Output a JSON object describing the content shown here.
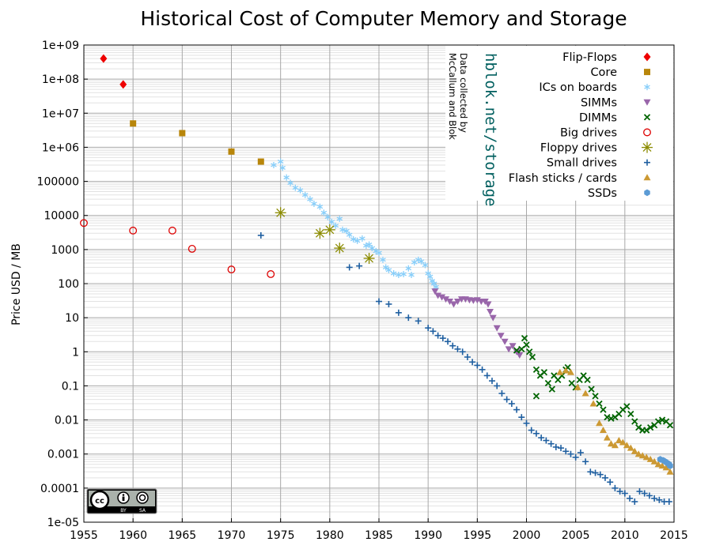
{
  "chart_data": {
    "type": "scatter",
    "title": "Historical Cost of Computer Memory and Storage",
    "xlabel": "",
    "ylabel": "Price USD / MB",
    "xlim": [
      1955,
      2015
    ],
    "ylim": [
      1e-05,
      1000000000.0
    ],
    "yscale": "log",
    "grid": true,
    "x_ticks": [
      1955,
      1960,
      1965,
      1970,
      1975,
      1980,
      1985,
      1990,
      1995,
      2000,
      2005,
      2010,
      2015
    ],
    "y_ticks": [
      {
        "v": 1e-05,
        "label": "1e-05"
      },
      {
        "v": 0.0001,
        "label": "0.0001"
      },
      {
        "v": 0.001,
        "label": "0.001"
      },
      {
        "v": 0.01,
        "label": "0.01"
      },
      {
        "v": 0.1,
        "label": "0.1"
      },
      {
        "v": 1,
        "label": "1"
      },
      {
        "v": 10,
        "label": "10"
      },
      {
        "v": 100,
        "label": "100"
      },
      {
        "v": 1000,
        "label": "1000"
      },
      {
        "v": 10000,
        "label": "10000"
      },
      {
        "v": 100000,
        "label": "100000"
      },
      {
        "v": 1000000,
        "label": "1e+06"
      },
      {
        "v": 10000000,
        "label": "1e+07"
      },
      {
        "v": 100000000,
        "label": "1e+08"
      },
      {
        "v": 1000000000,
        "label": "1e+09"
      }
    ],
    "legend_position": "top-right",
    "series": [
      {
        "name": "Flip-Flops",
        "marker": "diamond",
        "color": "#ee0000",
        "points": [
          [
            1957,
            400000000
          ],
          [
            1959,
            70000000
          ]
        ]
      },
      {
        "name": "Core",
        "marker": "square",
        "color": "#b8860b",
        "points": [
          [
            1960,
            5000000
          ],
          [
            1965,
            2600000
          ],
          [
            1970,
            750000
          ],
          [
            1973,
            380000
          ]
        ]
      },
      {
        "name": "ICs on boards",
        "marker": "asterisk",
        "color": "#87cefa",
        "points": [
          [
            1974.3,
            300000
          ],
          [
            1975,
            380000
          ],
          [
            1975.2,
            250000
          ],
          [
            1975.6,
            130000
          ],
          [
            1976,
            90000
          ],
          [
            1976.5,
            65000
          ],
          [
            1977,
            55000
          ],
          [
            1977.5,
            40000
          ],
          [
            1978,
            30000
          ],
          [
            1978.4,
            22000
          ],
          [
            1979,
            18000
          ],
          [
            1979.4,
            12000
          ],
          [
            1979.8,
            9000
          ],
          [
            1980.2,
            6500
          ],
          [
            1980.6,
            5000
          ],
          [
            1981,
            8000
          ],
          [
            1981.3,
            3800
          ],
          [
            1981.7,
            3500
          ],
          [
            1982,
            2700
          ],
          [
            1982.4,
            2000
          ],
          [
            1982.8,
            1800
          ],
          [
            1983.3,
            2100
          ],
          [
            1983.7,
            1300
          ],
          [
            1984,
            1400
          ],
          [
            1984.3,
            1100
          ],
          [
            1984.7,
            900
          ],
          [
            1985,
            800
          ],
          [
            1985.4,
            500
          ],
          [
            1985.7,
            300
          ],
          [
            1986,
            250
          ],
          [
            1986.5,
            200
          ],
          [
            1987,
            180
          ],
          [
            1987.5,
            190
          ],
          [
            1988,
            280
          ],
          [
            1988.3,
            180
          ],
          [
            1988.6,
            420
          ],
          [
            1989,
            500
          ],
          [
            1989.3,
            450
          ],
          [
            1989.7,
            350
          ],
          [
            1990,
            200
          ],
          [
            1990.2,
            160
          ],
          [
            1990.4,
            120
          ],
          [
            1990.6,
            100
          ],
          [
            1990.8,
            80
          ]
        ]
      },
      {
        "name": "SIMMs",
        "marker": "triangle-down",
        "color": "#9966aa",
        "points": [
          [
            1990.7,
            60
          ],
          [
            1991,
            45
          ],
          [
            1991.4,
            40
          ],
          [
            1991.8,
            35
          ],
          [
            1992.2,
            30
          ],
          [
            1992.6,
            25
          ],
          [
            1993,
            30
          ],
          [
            1993.4,
            35
          ],
          [
            1993.8,
            35
          ],
          [
            1994.2,
            33
          ],
          [
            1994.6,
            32
          ],
          [
            1995,
            33
          ],
          [
            1995.4,
            30
          ],
          [
            1995.8,
            30
          ],
          [
            1996.1,
            25
          ],
          [
            1996.3,
            15
          ],
          [
            1996.6,
            10
          ],
          [
            1997,
            5
          ],
          [
            1997.4,
            3
          ],
          [
            1997.8,
            2
          ],
          [
            1998.2,
            1.2
          ],
          [
            1998.6,
            1.5
          ],
          [
            1999,
            1
          ],
          [
            1999.3,
            0.8
          ]
        ]
      },
      {
        "name": "DIMMs",
        "marker": "x",
        "color": "#006400",
        "points": [
          [
            1999,
            1.1
          ],
          [
            1999.5,
            1.2
          ],
          [
            1999.8,
            2.5
          ],
          [
            2000,
            1.6
          ],
          [
            2000.3,
            1.0
          ],
          [
            2000.6,
            0.7
          ],
          [
            2001,
            0.3
          ],
          [
            2001,
            0.05
          ],
          [
            2001.4,
            0.2
          ],
          [
            2001.8,
            0.25
          ],
          [
            2002.2,
            0.12
          ],
          [
            2002.6,
            0.08
          ],
          [
            2002.8,
            0.2
          ],
          [
            2003.2,
            0.15
          ],
          [
            2003.6,
            0.2
          ],
          [
            2004,
            0.3
          ],
          [
            2004.2,
            0.35
          ],
          [
            2004.6,
            0.12
          ],
          [
            2005,
            0.09
          ],
          [
            2005.4,
            0.15
          ],
          [
            2005.8,
            0.2
          ],
          [
            2006.2,
            0.15
          ],
          [
            2006.6,
            0.08
          ],
          [
            2007,
            0.05
          ],
          [
            2007.4,
            0.03
          ],
          [
            2007.8,
            0.02
          ],
          [
            2008.2,
            0.012
          ],
          [
            2008.6,
            0.011
          ],
          [
            2009,
            0.012
          ],
          [
            2009.4,
            0.015
          ],
          [
            2009.8,
            0.02
          ],
          [
            2010.2,
            0.025
          ],
          [
            2010.6,
            0.015
          ],
          [
            2011,
            0.009
          ],
          [
            2011.4,
            0.006
          ],
          [
            2011.8,
            0.005
          ],
          [
            2012.2,
            0.005
          ],
          [
            2012.6,
            0.006
          ],
          [
            2013,
            0.007
          ],
          [
            2013.4,
            0.009
          ],
          [
            2013.8,
            0.01
          ],
          [
            2014.2,
            0.009
          ],
          [
            2014.6,
            0.007
          ]
        ]
      },
      {
        "name": "Big drives",
        "marker": "circle-open",
        "color": "#dd0000",
        "points": [
          [
            1955,
            6000
          ],
          [
            1960,
            3600
          ],
          [
            1964,
            3600
          ],
          [
            1966,
            1050
          ],
          [
            1970,
            260
          ],
          [
            1974,
            190
          ]
        ]
      },
      {
        "name": "Floppy drives",
        "marker": "star",
        "color": "#8b8b00",
        "points": [
          [
            1975,
            12000
          ],
          [
            1979,
            3000
          ],
          [
            1980,
            3800
          ],
          [
            1981,
            1100
          ],
          [
            1984,
            550
          ]
        ]
      },
      {
        "name": "Small drives",
        "marker": "plus",
        "color": "#1f5fa0",
        "points": [
          [
            1973,
            2600
          ],
          [
            1982,
            300
          ],
          [
            1983,
            330
          ],
          [
            1985,
            30
          ],
          [
            1986,
            25
          ],
          [
            1987,
            14
          ],
          [
            1988,
            10
          ],
          [
            1989,
            8
          ],
          [
            1990,
            5
          ],
          [
            1990.5,
            4
          ],
          [
            1991,
            3
          ],
          [
            1991.5,
            2.5
          ],
          [
            1992,
            2
          ],
          [
            1992.5,
            1.5
          ],
          [
            1993,
            1.2
          ],
          [
            1993.5,
            1
          ],
          [
            1994,
            0.7
          ],
          [
            1994.5,
            0.5
          ],
          [
            1995,
            0.4
          ],
          [
            1995.5,
            0.3
          ],
          [
            1996,
            0.2
          ],
          [
            1996.5,
            0.14
          ],
          [
            1997,
            0.1
          ],
          [
            1997.5,
            0.06
          ],
          [
            1998,
            0.04
          ],
          [
            1998.5,
            0.03
          ],
          [
            1999,
            0.02
          ],
          [
            1999.5,
            0.012
          ],
          [
            2000,
            0.008
          ],
          [
            2000.5,
            0.005
          ],
          [
            2001,
            0.004
          ],
          [
            2001.5,
            0.003
          ],
          [
            2002,
            0.0025
          ],
          [
            2002.5,
            0.002
          ],
          [
            2003,
            0.0016
          ],
          [
            2003.5,
            0.0015
          ],
          [
            2004,
            0.0012
          ],
          [
            2004.5,
            0.001
          ],
          [
            2005,
            0.0008
          ],
          [
            2005.5,
            0.0011
          ],
          [
            2006,
            0.0006
          ],
          [
            2006.5,
            0.0003
          ],
          [
            2007,
            0.00028
          ],
          [
            2007.5,
            0.00025
          ],
          [
            2008,
            0.0002
          ],
          [
            2008.5,
            0.00015
          ],
          [
            2009,
            0.0001
          ],
          [
            2009.5,
            8e-05
          ],
          [
            2010,
            7e-05
          ],
          [
            2010.5,
            5e-05
          ],
          [
            2011,
            4e-05
          ],
          [
            2011.5,
            8e-05
          ],
          [
            2012,
            7e-05
          ],
          [
            2012.5,
            6e-05
          ],
          [
            2013,
            5e-05
          ],
          [
            2013.5,
            4.5e-05
          ],
          [
            2014,
            4e-05
          ],
          [
            2014.5,
            4e-05
          ]
        ]
      },
      {
        "name": "Flash sticks / cards",
        "marker": "triangle-up",
        "color": "#cc9933",
        "points": [
          [
            2003.4,
            0.25
          ],
          [
            2004,
            0.28
          ],
          [
            2004.5,
            0.25
          ],
          [
            2005.2,
            0.09
          ],
          [
            2006,
            0.06
          ],
          [
            2006.8,
            0.03
          ],
          [
            2007.4,
            0.008
          ],
          [
            2007.8,
            0.005
          ],
          [
            2008.2,
            0.003
          ],
          [
            2008.6,
            0.002
          ],
          [
            2009,
            0.0018
          ],
          [
            2009.4,
            0.0025
          ],
          [
            2009.8,
            0.0022
          ],
          [
            2010.2,
            0.0018
          ],
          [
            2010.6,
            0.0015
          ],
          [
            2011,
            0.0012
          ],
          [
            2011.4,
            0.001
          ],
          [
            2011.8,
            0.0009
          ],
          [
            2012.2,
            0.0008
          ],
          [
            2012.6,
            0.0007
          ],
          [
            2013,
            0.0006
          ],
          [
            2013.4,
            0.0005
          ],
          [
            2013.8,
            0.00045
          ],
          [
            2014.2,
            0.0004
          ],
          [
            2014.6,
            0.0003
          ]
        ]
      },
      {
        "name": "SSDs",
        "marker": "hexagon",
        "color": "#5b9bd5",
        "points": [
          [
            2013.6,
            0.0007
          ],
          [
            2013.9,
            0.00065
          ],
          [
            2014.1,
            0.0006
          ],
          [
            2014.3,
            0.00055
          ],
          [
            2014.5,
            0.0005
          ],
          [
            2014.6,
            0.00045
          ]
        ]
      }
    ],
    "annotations": {
      "watermark_main": "hblok.net/storage",
      "watermark_sub_1": "Data collected by",
      "watermark_sub_2": "McCallum and Blok"
    }
  },
  "license_badge": {
    "cc": "cc",
    "by_label": "BY",
    "sa_label": "SA"
  }
}
